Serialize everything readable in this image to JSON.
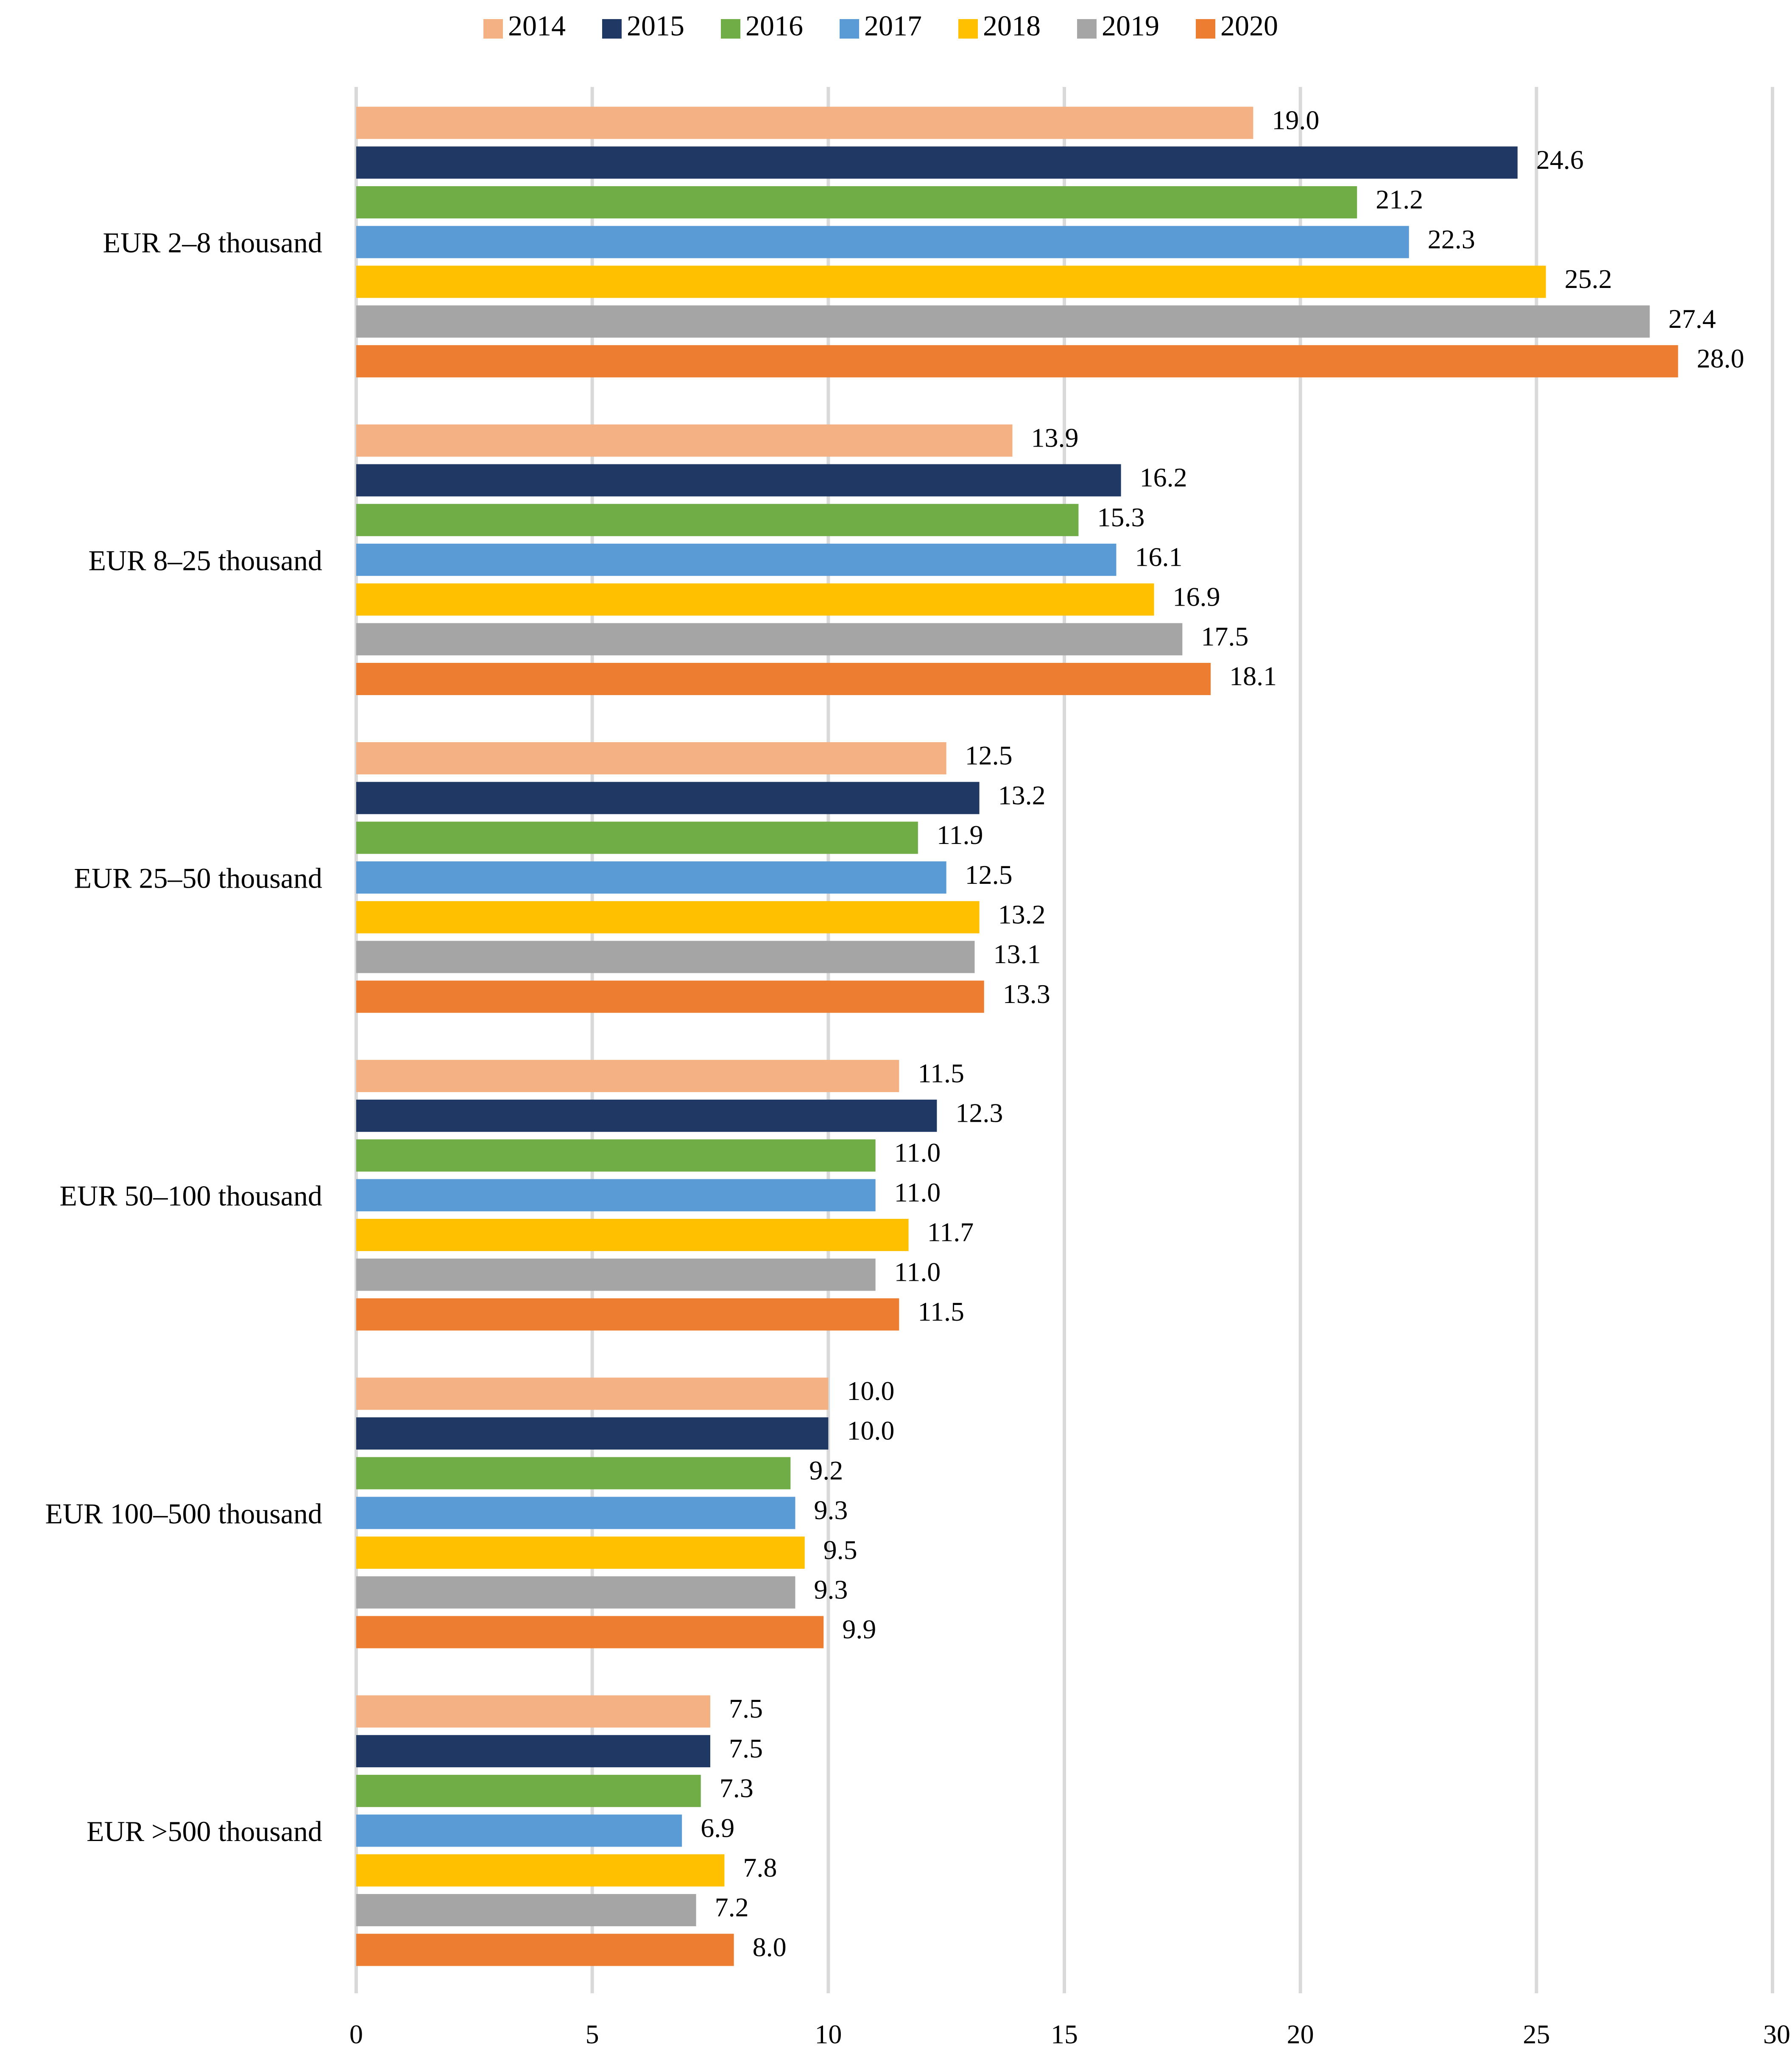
{
  "chart_data": {
    "type": "bar",
    "orientation": "horizontal",
    "title": "",
    "xlabel": "",
    "ylabel": "",
    "xlim": [
      0,
      30
    ],
    "x_ticks": [
      "0",
      "5",
      "10",
      "15",
      "20",
      "25",
      "30"
    ],
    "grid": "vertical",
    "legend_position": "top",
    "categories": [
      "EUR 2–8 thousand",
      "EUR 8–25 thousand",
      "EUR 25–50 thousand",
      "EUR 50–100 thousand",
      "EUR 100–500 thousand",
      "EUR >500 thousand"
    ],
    "series": [
      {
        "name": "2014",
        "color": "#F4B183",
        "values": [
          19.0,
          13.9,
          12.5,
          11.5,
          10.0,
          7.5
        ],
        "labels": [
          "19.0",
          "13.9",
          "12.5",
          "11.5",
          "10.0",
          "7.5"
        ]
      },
      {
        "name": "2015",
        "color": "#203864",
        "values": [
          24.6,
          16.2,
          13.2,
          12.3,
          10.0,
          7.5
        ],
        "labels": [
          "24.6",
          "16.2",
          "13.2",
          "12.3",
          "10.0",
          "7.5"
        ]
      },
      {
        "name": "2016",
        "color": "#70AD47",
        "values": [
          21.2,
          15.3,
          11.9,
          11.0,
          9.2,
          7.3
        ],
        "labels": [
          "21.2",
          "15.3",
          "11.9",
          "11.0",
          "9.2",
          "7.3"
        ]
      },
      {
        "name": "2017",
        "color": "#5B9BD5",
        "values": [
          22.3,
          16.1,
          12.5,
          11.0,
          9.3,
          6.9
        ],
        "labels": [
          "22.3",
          "16.1",
          "12.5",
          "11.0",
          "9.3",
          "6.9"
        ]
      },
      {
        "name": "2018",
        "color": "#FFC000",
        "values": [
          25.2,
          16.9,
          13.2,
          11.7,
          9.5,
          7.8
        ],
        "labels": [
          "25.2",
          "16.9",
          "13.2",
          "11.7",
          "9.5",
          "7.8"
        ]
      },
      {
        "name": "2019",
        "color": "#A5A5A5",
        "values": [
          27.4,
          17.5,
          13.1,
          11.0,
          9.3,
          7.2
        ],
        "labels": [
          "27.4",
          "17.5",
          "13.1",
          "11.0",
          "9.3",
          "7.2"
        ]
      },
      {
        "name": "2020",
        "color": "#ED7D31",
        "values": [
          28.0,
          18.1,
          13.3,
          11.5,
          9.9,
          8.0
        ],
        "labels": [
          "28.0",
          "18.1",
          "13.3",
          "11.5",
          "9.9",
          "8.0"
        ]
      }
    ]
  }
}
